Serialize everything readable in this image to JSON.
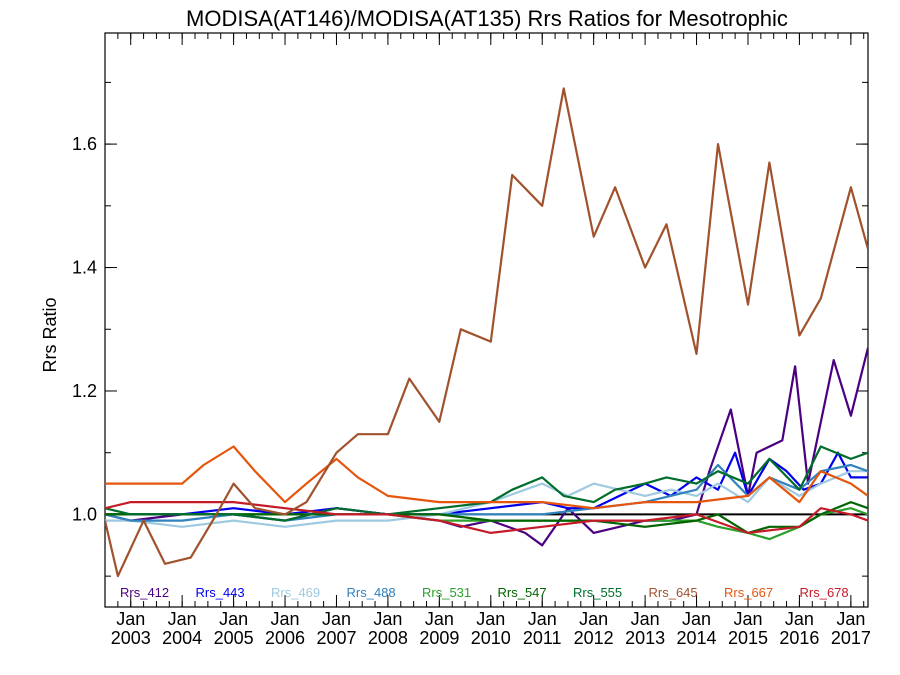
{
  "chart_data": {
    "type": "line",
    "title": "MODISA(AT146)/MODISA(AT135)  Rrs Ratios for Mesotrophic",
    "xlabel": "",
    "ylabel": "Rrs Ratio",
    "xlim": [
      "2002-07",
      "2017-05"
    ],
    "ylim": [
      0.85,
      1.78
    ],
    "yticks": [
      "1.0",
      "1.2",
      "1.4",
      "1.6"
    ],
    "xtick_labels": [
      {
        "month": "Jan",
        "year": "2003"
      },
      {
        "month": "Jan",
        "year": "2004"
      },
      {
        "month": "Jan",
        "year": "2005"
      },
      {
        "month": "Jan",
        "year": "2006"
      },
      {
        "month": "Jan",
        "year": "2007"
      },
      {
        "month": "Jan",
        "year": "2008"
      },
      {
        "month": "Jan",
        "year": "2009"
      },
      {
        "month": "Jan",
        "year": "2010"
      },
      {
        "month": "Jan",
        "year": "2011"
      },
      {
        "month": "Jan",
        "year": "2012"
      },
      {
        "month": "Jan",
        "year": "2013"
      },
      {
        "month": "Jan",
        "year": "2014"
      },
      {
        "month": "Jan",
        "year": "2015"
      },
      {
        "month": "Jan",
        "year": "2016"
      },
      {
        "month": "Jan",
        "year": "2017"
      }
    ],
    "reference_line": {
      "y": 1.0,
      "color": "#000000"
    },
    "grid": false,
    "legend_position": "bottom",
    "series": [
      {
        "name": "Rrs_412",
        "color": "#4b0082",
        "x": [
          "2002-07",
          "2003-01",
          "2004-01",
          "2005-01",
          "2006-01",
          "2007-01",
          "2008-01",
          "2009-01",
          "2009-06",
          "2010-01",
          "2010-09",
          "2011-01",
          "2011-07",
          "2012-01",
          "2012-07",
          "2013-01",
          "2013-07",
          "2014-01",
          "2014-04",
          "2014-09",
          "2015-01",
          "2015-03",
          "2015-09",
          "2015-12",
          "2016-03",
          "2016-09",
          "2017-01",
          "2017-05"
        ],
        "values": [
          1.0,
          0.99,
          1.0,
          1.0,
          0.99,
          1.01,
          1.0,
          0.99,
          0.98,
          0.99,
          0.97,
          0.95,
          1.01,
          0.97,
          0.98,
          0.99,
          0.99,
          1.0,
          1.07,
          1.17,
          1.03,
          1.1,
          1.12,
          1.24,
          1.05,
          1.25,
          1.16,
          1.27
        ]
      },
      {
        "name": "Rrs_443",
        "color": "#0000ee",
        "x": [
          "2002-07",
          "2003-01",
          "2004-01",
          "2005-01",
          "2006-01",
          "2007-01",
          "2008-01",
          "2009-01",
          "2010-01",
          "2011-01",
          "2011-07",
          "2012-01",
          "2012-07",
          "2013-01",
          "2013-07",
          "2014-01",
          "2014-06",
          "2014-10",
          "2015-01",
          "2015-06",
          "2015-10",
          "2016-02",
          "2016-06",
          "2016-10",
          "2017-01",
          "2017-05"
        ],
        "values": [
          1.0,
          1.0,
          1.0,
          1.01,
          1.0,
          1.01,
          1.0,
          1.0,
          1.01,
          1.02,
          1.01,
          1.01,
          1.03,
          1.05,
          1.03,
          1.06,
          1.04,
          1.1,
          1.03,
          1.09,
          1.07,
          1.04,
          1.05,
          1.1,
          1.06,
          1.06
        ]
      },
      {
        "name": "Rrs_469",
        "color": "#9ecae1",
        "x": [
          "2002-07",
          "2003-01",
          "2004-01",
          "2005-01",
          "2006-01",
          "2007-01",
          "2008-01",
          "2009-01",
          "2010-01",
          "2010-09",
          "2011-01",
          "2011-07",
          "2012-01",
          "2012-07",
          "2013-01",
          "2013-07",
          "2014-01",
          "2014-06",
          "2015-01",
          "2015-06",
          "2016-01",
          "2016-06",
          "2017-01",
          "2017-05"
        ],
        "values": [
          0.99,
          0.99,
          0.98,
          0.99,
          0.98,
          0.99,
          0.99,
          1.0,
          1.02,
          1.04,
          1.05,
          1.03,
          1.05,
          1.04,
          1.03,
          1.04,
          1.03,
          1.05,
          1.02,
          1.06,
          1.03,
          1.05,
          1.07,
          1.07
        ]
      },
      {
        "name": "Rrs_488",
        "color": "#3182bd",
        "x": [
          "2002-07",
          "2003-01",
          "2004-01",
          "2005-01",
          "2006-01",
          "2007-01",
          "2008-01",
          "2009-01",
          "2010-01",
          "2011-01",
          "2012-01",
          "2013-01",
          "2014-01",
          "2014-06",
          "2015-01",
          "2015-06",
          "2016-01",
          "2016-06",
          "2017-01",
          "2017-05"
        ],
        "values": [
          1.0,
          0.99,
          0.99,
          1.0,
          0.99,
          1.0,
          1.0,
          1.0,
          1.0,
          1.0,
          1.01,
          1.02,
          1.04,
          1.08,
          1.03,
          1.06,
          1.04,
          1.07,
          1.08,
          1.07
        ]
      },
      {
        "name": "Rrs_531",
        "color": "#2ca02c",
        "x": [
          "2002-07",
          "2003-01",
          "2004-01",
          "2005-01",
          "2006-01",
          "2007-01",
          "2008-01",
          "2009-01",
          "2010-01",
          "2011-01",
          "2012-01",
          "2013-01",
          "2014-01",
          "2014-06",
          "2015-01",
          "2015-06",
          "2016-01",
          "2016-06",
          "2017-01",
          "2017-05"
        ],
        "values": [
          1.0,
          1.0,
          1.0,
          1.0,
          1.0,
          1.0,
          1.0,
          0.99,
          0.99,
          0.99,
          0.99,
          0.99,
          0.99,
          0.98,
          0.97,
          0.96,
          0.98,
          1.0,
          1.01,
          1.0
        ]
      },
      {
        "name": "Rrs_547",
        "color": "#006400",
        "x": [
          "2002-07",
          "2003-01",
          "2004-01",
          "2005-01",
          "2006-01",
          "2007-01",
          "2008-01",
          "2009-01",
          "2010-01",
          "2011-01",
          "2012-01",
          "2013-01",
          "2014-01",
          "2014-06",
          "2015-01",
          "2015-06",
          "2016-01",
          "2016-06",
          "2017-01",
          "2017-05"
        ],
        "values": [
          1.0,
          1.0,
          1.0,
          1.0,
          1.0,
          1.0,
          1.0,
          1.0,
          0.99,
          0.99,
          0.99,
          0.98,
          0.99,
          1.0,
          0.97,
          0.98,
          0.98,
          1.0,
          1.02,
          1.01
        ]
      },
      {
        "name": "Rrs_555",
        "color": "#006d2c",
        "x": [
          "2002-07",
          "2003-01",
          "2004-01",
          "2005-01",
          "2006-01",
          "2007-01",
          "2008-01",
          "2009-01",
          "2010-01",
          "2010-06",
          "2011-01",
          "2011-06",
          "2012-01",
          "2012-06",
          "2013-01",
          "2013-06",
          "2014-01",
          "2014-06",
          "2015-01",
          "2015-06",
          "2016-01",
          "2016-06",
          "2017-01",
          "2017-05"
        ],
        "values": [
          1.01,
          1.0,
          1.0,
          1.0,
          0.99,
          1.01,
          1.0,
          1.01,
          1.02,
          1.04,
          1.06,
          1.03,
          1.02,
          1.04,
          1.05,
          1.06,
          1.05,
          1.07,
          1.05,
          1.09,
          1.04,
          1.11,
          1.09,
          1.1
        ]
      },
      {
        "name": "Rrs_645",
        "color": "#a0522d",
        "x": [
          "2002-07",
          "2002-10",
          "2003-04",
          "2003-09",
          "2004-03",
          "2004-09",
          "2005-01",
          "2005-06",
          "2006-01",
          "2006-06",
          "2007-01",
          "2007-06",
          "2008-01",
          "2008-06",
          "2009-01",
          "2009-06",
          "2010-01",
          "2010-06",
          "2011-01",
          "2011-06",
          "2012-01",
          "2012-06",
          "2013-01",
          "2013-06",
          "2014-01",
          "2014-06",
          "2015-01",
          "2015-06",
          "2016-01",
          "2016-06",
          "2017-01",
          "2017-05"
        ],
        "values": [
          0.99,
          0.9,
          0.99,
          0.92,
          0.93,
          1.0,
          1.05,
          1.01,
          1.0,
          1.02,
          1.1,
          1.13,
          1.13,
          1.22,
          1.15,
          1.3,
          1.28,
          1.55,
          1.5,
          1.69,
          1.45,
          1.53,
          1.4,
          1.47,
          1.26,
          1.6,
          1.34,
          1.57,
          1.29,
          1.35,
          1.53,
          1.43
        ]
      },
      {
        "name": "Rrs_667",
        "color": "#e6550d",
        "x": [
          "2002-07",
          "2003-01",
          "2004-01",
          "2004-06",
          "2005-01",
          "2005-06",
          "2006-01",
          "2006-06",
          "2007-01",
          "2007-06",
          "2008-01",
          "2009-01",
          "2010-01",
          "2011-01",
          "2012-01",
          "2013-01",
          "2014-01",
          "2015-01",
          "2015-06",
          "2016-01",
          "2016-06",
          "2017-01",
          "2017-05"
        ],
        "values": [
          1.05,
          1.05,
          1.05,
          1.08,
          1.11,
          1.07,
          1.02,
          1.05,
          1.09,
          1.06,
          1.03,
          1.02,
          1.02,
          1.02,
          1.01,
          1.02,
          1.02,
          1.03,
          1.06,
          1.02,
          1.07,
          1.05,
          1.03
        ]
      },
      {
        "name": "Rrs_678",
        "color": "#c51b29",
        "x": [
          "2002-07",
          "2003-01",
          "2004-01",
          "2005-01",
          "2006-01",
          "2007-01",
          "2008-01",
          "2009-01",
          "2010-01",
          "2011-01",
          "2012-01",
          "2013-01",
          "2014-01",
          "2015-01",
          "2016-01",
          "2016-06",
          "2017-01",
          "2017-05"
        ],
        "values": [
          1.01,
          1.02,
          1.02,
          1.02,
          1.01,
          1.0,
          1.0,
          0.99,
          0.97,
          0.98,
          0.99,
          0.99,
          1.0,
          0.97,
          0.98,
          1.01,
          1.0,
          0.99
        ]
      }
    ]
  }
}
